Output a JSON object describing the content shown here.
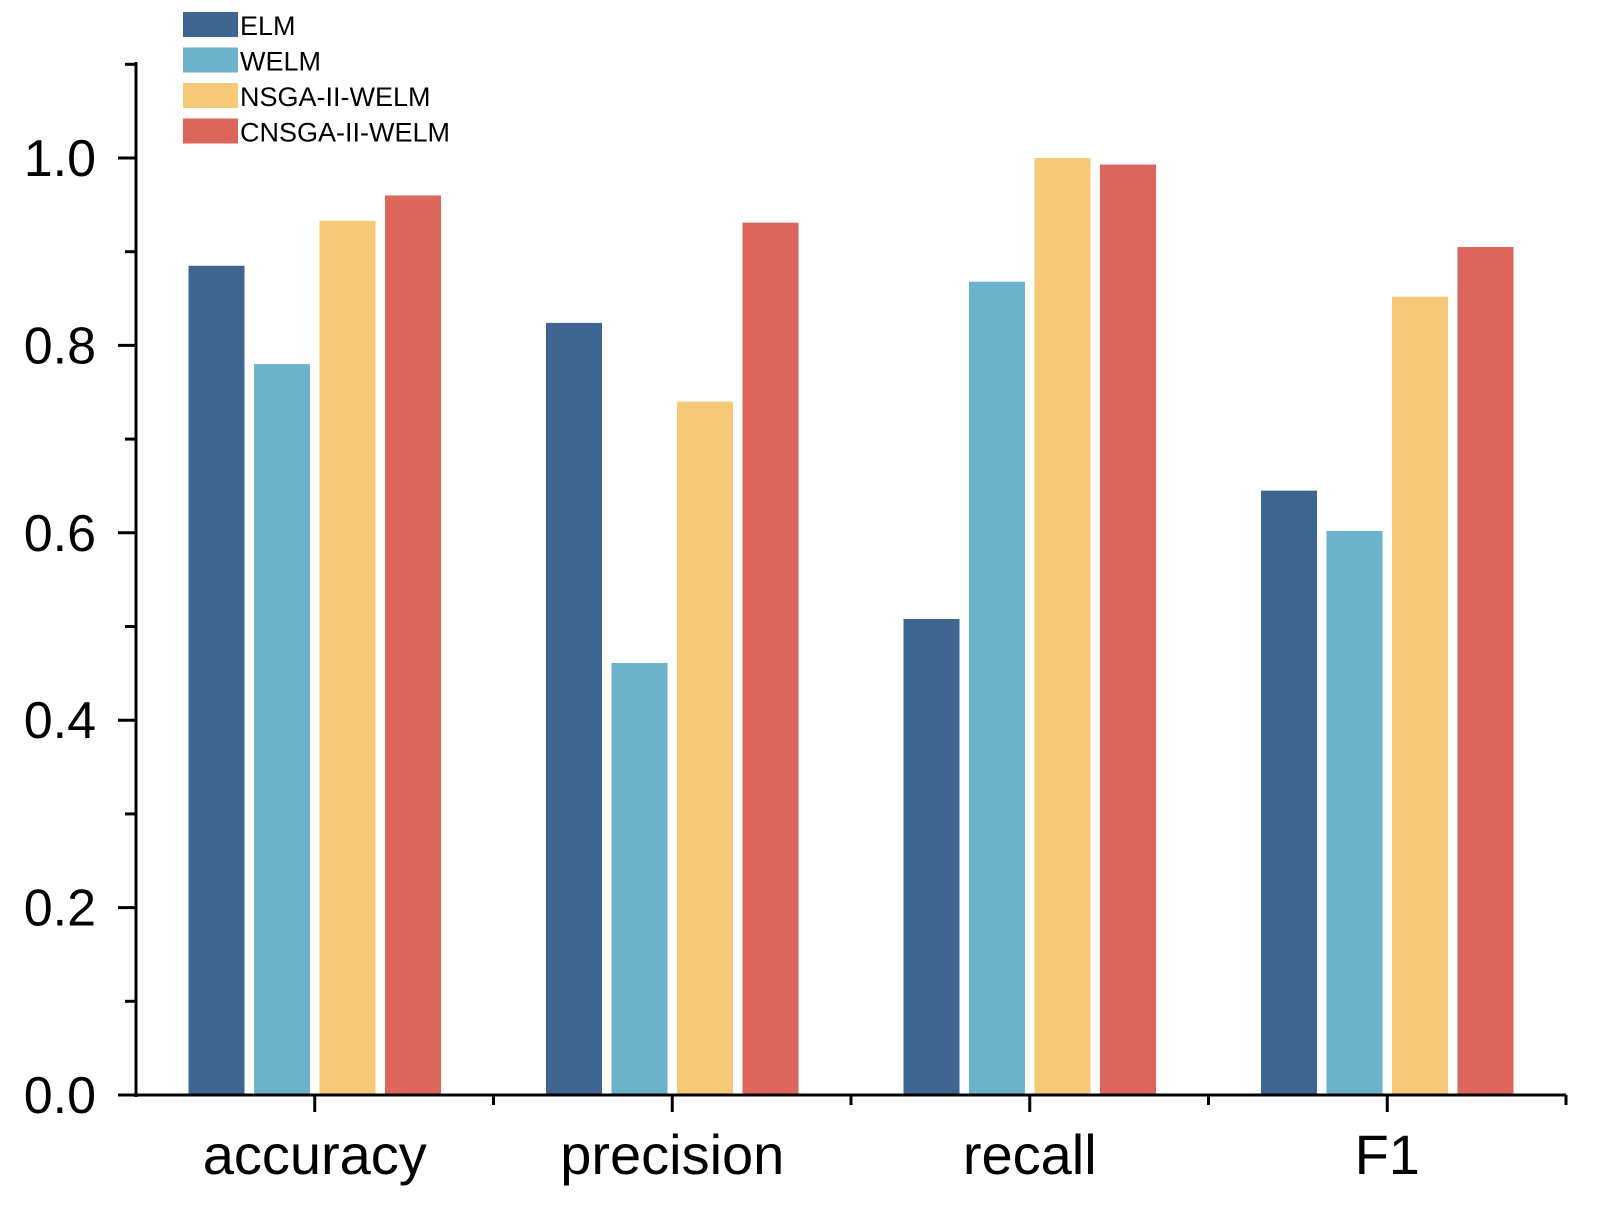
{
  "chart_data": {
    "type": "bar",
    "title": "",
    "xlabel": "",
    "ylabel": "",
    "categories": [
      "accuracy",
      "precision",
      "recall",
      "F1"
    ],
    "ylim": [
      0,
      1.1
    ],
    "yticks": [
      "0.0",
      "0.2",
      "0.4",
      "0.6",
      "0.8",
      "1.0"
    ],
    "grid": false,
    "legend_position": "top-left",
    "series": [
      {
        "name": "ELM",
        "color": "#3e6690",
        "values": [
          0.885,
          0.824,
          0.508,
          0.645
        ]
      },
      {
        "name": "WELM",
        "color": "#6cb2cb",
        "values": [
          0.78,
          0.461,
          0.868,
          0.602
        ]
      },
      {
        "name": "NSGA-II-WELM",
        "color": "#f5c977",
        "values": [
          0.933,
          0.74,
          1.0,
          0.852
        ]
      },
      {
        "name": "CNSGA-II-WELM",
        "color": "#dc655c",
        "values": [
          0.96,
          0.931,
          0.993,
          0.905
        ]
      }
    ]
  }
}
